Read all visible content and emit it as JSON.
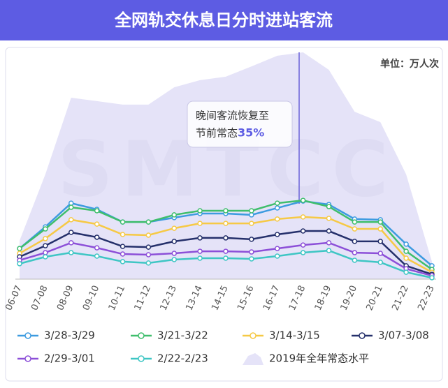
{
  "chart_data": {
    "type": "line",
    "title": "全网轨交休息日分时进站客流",
    "unit_label": "单位：万人次",
    "watermark": "SMTCC",
    "annotation": {
      "line1": "晚间客流恢复至",
      "line2": "节前常态",
      "highlight": "35%"
    },
    "categories": [
      "06-07",
      "07-08",
      "08-09",
      "09-10",
      "10-11",
      "11-12",
      "12-13",
      "13-14",
      "14-15",
      "15-16",
      "16-17",
      "17-18",
      "18-19",
      "19-20",
      "20-21",
      "21-22",
      "22-23"
    ],
    "ylim": [
      0,
      100
    ],
    "series": [
      {
        "name": "2019年全年常态水平",
        "type": "area",
        "color": "#e5e3f8",
        "values": [
          16.7,
          45.5,
          78.8,
          77.3,
          75.8,
          75.8,
          83.3,
          86.4,
          87.9,
          92.4,
          97.0,
          98.5,
          90.9,
          72.7,
          68.2,
          45.5,
          7.6
        ]
      },
      {
        "name": "3/28-3/29",
        "color": "#3d9be0",
        "values": [
          13.3,
          22.7,
          33.0,
          30.3,
          24.8,
          24.8,
          26.7,
          28.5,
          28.5,
          27.9,
          30.9,
          33.9,
          32.4,
          26.1,
          25.8,
          15.2,
          5.8
        ]
      },
      {
        "name": "3/21-3/22",
        "color": "#3fbe6c",
        "values": [
          13.3,
          21.8,
          31.2,
          29.7,
          24.8,
          24.8,
          27.9,
          29.7,
          29.7,
          29.7,
          33.0,
          34.2,
          31.5,
          24.8,
          24.8,
          12.1,
          4.2
        ]
      },
      {
        "name": "3/14-3/15",
        "color": "#f6c945",
        "values": [
          11.2,
          17.6,
          25.8,
          23.9,
          19.4,
          19.1,
          22.1,
          24.2,
          24.2,
          24.2,
          26.1,
          27.0,
          26.4,
          21.8,
          21.8,
          9.1,
          3.0
        ]
      },
      {
        "name": "3/07-3/08",
        "color": "#25306b",
        "values": [
          9.7,
          14.5,
          20.3,
          18.2,
          14.2,
          13.9,
          16.4,
          17.9,
          17.9,
          17.3,
          19.4,
          20.9,
          20.9,
          16.4,
          16.4,
          5.8,
          2.1
        ]
      },
      {
        "name": "2/29-3/01",
        "color": "#8c4fd8",
        "values": [
          8.2,
          11.5,
          15.8,
          13.6,
          10.9,
          10.6,
          11.2,
          12.1,
          12.1,
          11.8,
          13.3,
          14.8,
          15.8,
          11.5,
          11.2,
          4.5,
          1.5
        ]
      },
      {
        "name": "2/22-2/23",
        "color": "#3ec6c4",
        "values": [
          6.7,
          9.7,
          11.5,
          10.0,
          7.6,
          7.0,
          8.5,
          9.1,
          9.1,
          8.8,
          10.0,
          11.5,
          12.4,
          8.2,
          7.3,
          3.0,
          0.6
        ]
      }
    ]
  }
}
